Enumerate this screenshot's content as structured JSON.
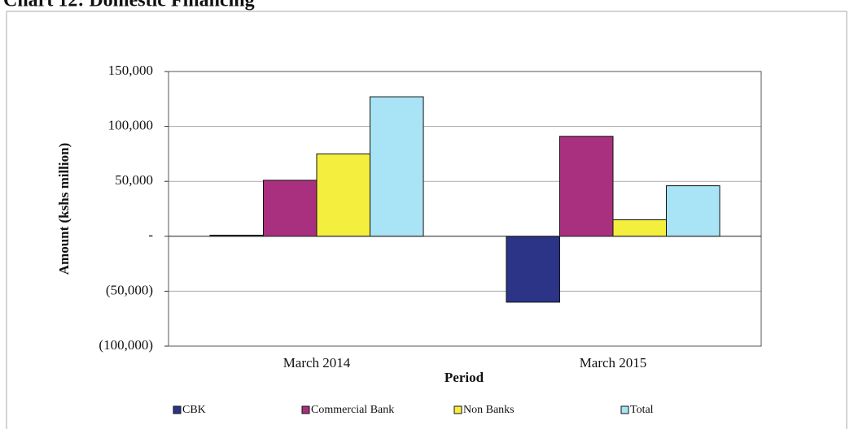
{
  "chart_data": {
    "type": "bar",
    "title": "Chart 12: Domestic Financing",
    "x_label": "Period",
    "y_label": "Amount (kshs million)",
    "categories": [
      "March 2014",
      "March 2015"
    ],
    "series": [
      {
        "name": "CBK",
        "color": "#2b3486",
        "values": [
          1000,
          -60000
        ]
      },
      {
        "name": "Commercial Bank",
        "color": "#a8307e",
        "values": [
          51000,
          91000
        ]
      },
      {
        "name": "Non Banks",
        "color": "#f4ee3e",
        "values": [
          75000,
          15000
        ]
      },
      {
        "name": "Total",
        "color": "#a8e4f5",
        "values": [
          127000,
          46000
        ]
      }
    ],
    "ylim": [
      -100000,
      150000
    ],
    "yticks": [
      {
        "value": -100000,
        "label": "(100,000)"
      },
      {
        "value": -50000,
        "label": "(50,000)"
      },
      {
        "value": 0,
        "label": "-"
      },
      {
        "value": 50000,
        "label": "50,000"
      },
      {
        "value": 100000,
        "label": "100,000"
      },
      {
        "value": 150000,
        "label": "150,000"
      }
    ],
    "grid": true,
    "legend": "bottom"
  }
}
